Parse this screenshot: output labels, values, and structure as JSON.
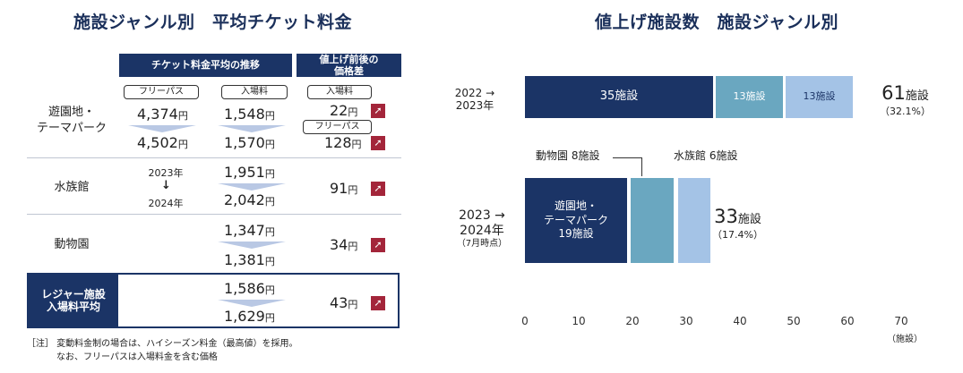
{
  "left": {
    "title": "施設ジャンル別　平均チケット料金",
    "col_header_price": "チケット料金平均の推移",
    "col_header_diff": "値上げ前後の\n価格差",
    "rows": [
      {
        "label": "遊園地・\nテーマパーク",
        "tag_pass": "フリーパス",
        "tag_entry": "入場料",
        "pass_before": "4,374",
        "pass_after": "4,502",
        "entry_before": "1,548",
        "entry_after": "1,570",
        "diff_tag_1": "入場料",
        "diff_1": "22",
        "diff_tag_2": "フリーパス",
        "diff_2": "128"
      },
      {
        "label": "水族館",
        "year_from": "2023年",
        "year_to": "2024年",
        "before": "1,951",
        "after": "2,042",
        "diff": "91"
      },
      {
        "label": "動物園",
        "before": "1,347",
        "after": "1,381",
        "diff": "34"
      },
      {
        "label": "レジャー施設\n入場料平均",
        "before": "1,586",
        "after": "1,629",
        "diff": "43"
      }
    ],
    "yen": "円",
    "arrow_icon": "up-right-arrow-icon",
    "note_1": "［注］ 変動料金制の場合は、ハイシーズン料金（最高値）を採用。",
    "note_2": "なお、フリーパスは入場料金を含む価格"
  },
  "chart_data": {
    "type": "bar",
    "orientation": "horizontal-stacked",
    "title": "値上げ施設数　施設ジャンル別",
    "xlim": [
      0,
      70
    ],
    "xticks": [
      0,
      10,
      20,
      30,
      40,
      50,
      60,
      70
    ],
    "xunit": "（施設）",
    "categories": [
      {
        "label_1": "2022 →",
        "label_2": "2023年",
        "label_3": "",
        "total_num": "61",
        "total_unit": "施設",
        "total_pct": "（32.1%）"
      },
      {
        "label_1": "2023 →",
        "label_2": "2024年",
        "label_3": "（7月時点）",
        "total_num": "33",
        "total_unit": "施設",
        "total_pct": "（17.4%）"
      }
    ],
    "series": [
      {
        "values": [
          35,
          19
        ],
        "color": "#1b3466",
        "labels": [
          "35施設",
          "遊園地・\nテーマパーク\n19施設"
        ]
      },
      {
        "values": [
          13,
          8
        ],
        "color": "#6aa7c0",
        "labels": [
          "13施設",
          "動物園 8施設"
        ]
      },
      {
        "values": [
          13,
          6
        ],
        "color": "#a4c3e6",
        "labels": [
          "13施設",
          "水族館 6施設"
        ]
      }
    ]
  }
}
